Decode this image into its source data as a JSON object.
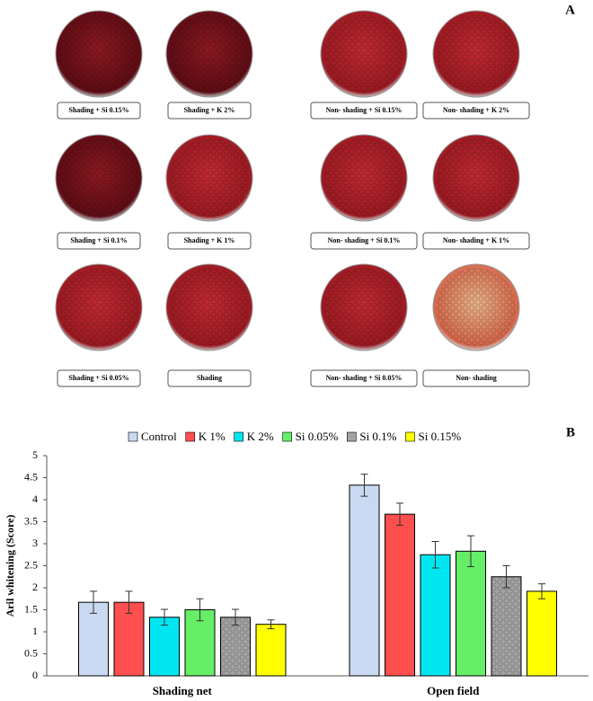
{
  "panel_a": {
    "letter": "A",
    "labels": [
      [
        "Shading + Si 0.15%",
        "Shading + K 2%",
        "Non- shading + Si 0.15%",
        "Non- shading + K 2%"
      ],
      [
        "Shading + Si 0.1%",
        "Shading + K 1%",
        "Non- shading + Si 0.1%",
        "Non- shading + K 1%"
      ],
      [
        "Shading + Si 0.05%",
        "Shading",
        "Non- shading + Si 0.05%",
        "Non- shading"
      ]
    ]
  },
  "chart_data": {
    "type": "bar",
    "panel_label": "B",
    "y_label": "Aril whitening (Score)",
    "categories": [
      "Shading net",
      "Open field"
    ],
    "series": [
      {
        "name": "Control",
        "color": "#c9d9f2",
        "values": [
          1.67,
          4.33
        ],
        "errors": [
          0.25,
          0.25
        ]
      },
      {
        "name": "K 1%",
        "color": "#ff4f4f",
        "values": [
          1.67,
          3.67
        ],
        "errors": [
          0.25,
          0.25
        ]
      },
      {
        "name": "K 2%",
        "color": "#00e6f0",
        "values": [
          1.33,
          2.75
        ],
        "errors": [
          0.18,
          0.3
        ]
      },
      {
        "name": "Si 0.05%",
        "color": "#66ee66",
        "values": [
          1.5,
          2.83
        ],
        "errors": [
          0.25,
          0.35
        ]
      },
      {
        "name": "Si 0.1%",
        "color": "#a3a3a3",
        "values": [
          1.33,
          2.25
        ],
        "errors": [
          0.18,
          0.25
        ]
      },
      {
        "name": "Si 0.15%",
        "color": "#ffff00",
        "values": [
          1.17,
          1.92
        ],
        "errors": [
          0.1,
          0.17
        ]
      }
    ],
    "ylim": [
      0,
      5
    ],
    "yticks": [
      0,
      0.5,
      1,
      1.5,
      2,
      2.5,
      3,
      3.5,
      4,
      4.5,
      5
    ],
    "legend": "top"
  }
}
